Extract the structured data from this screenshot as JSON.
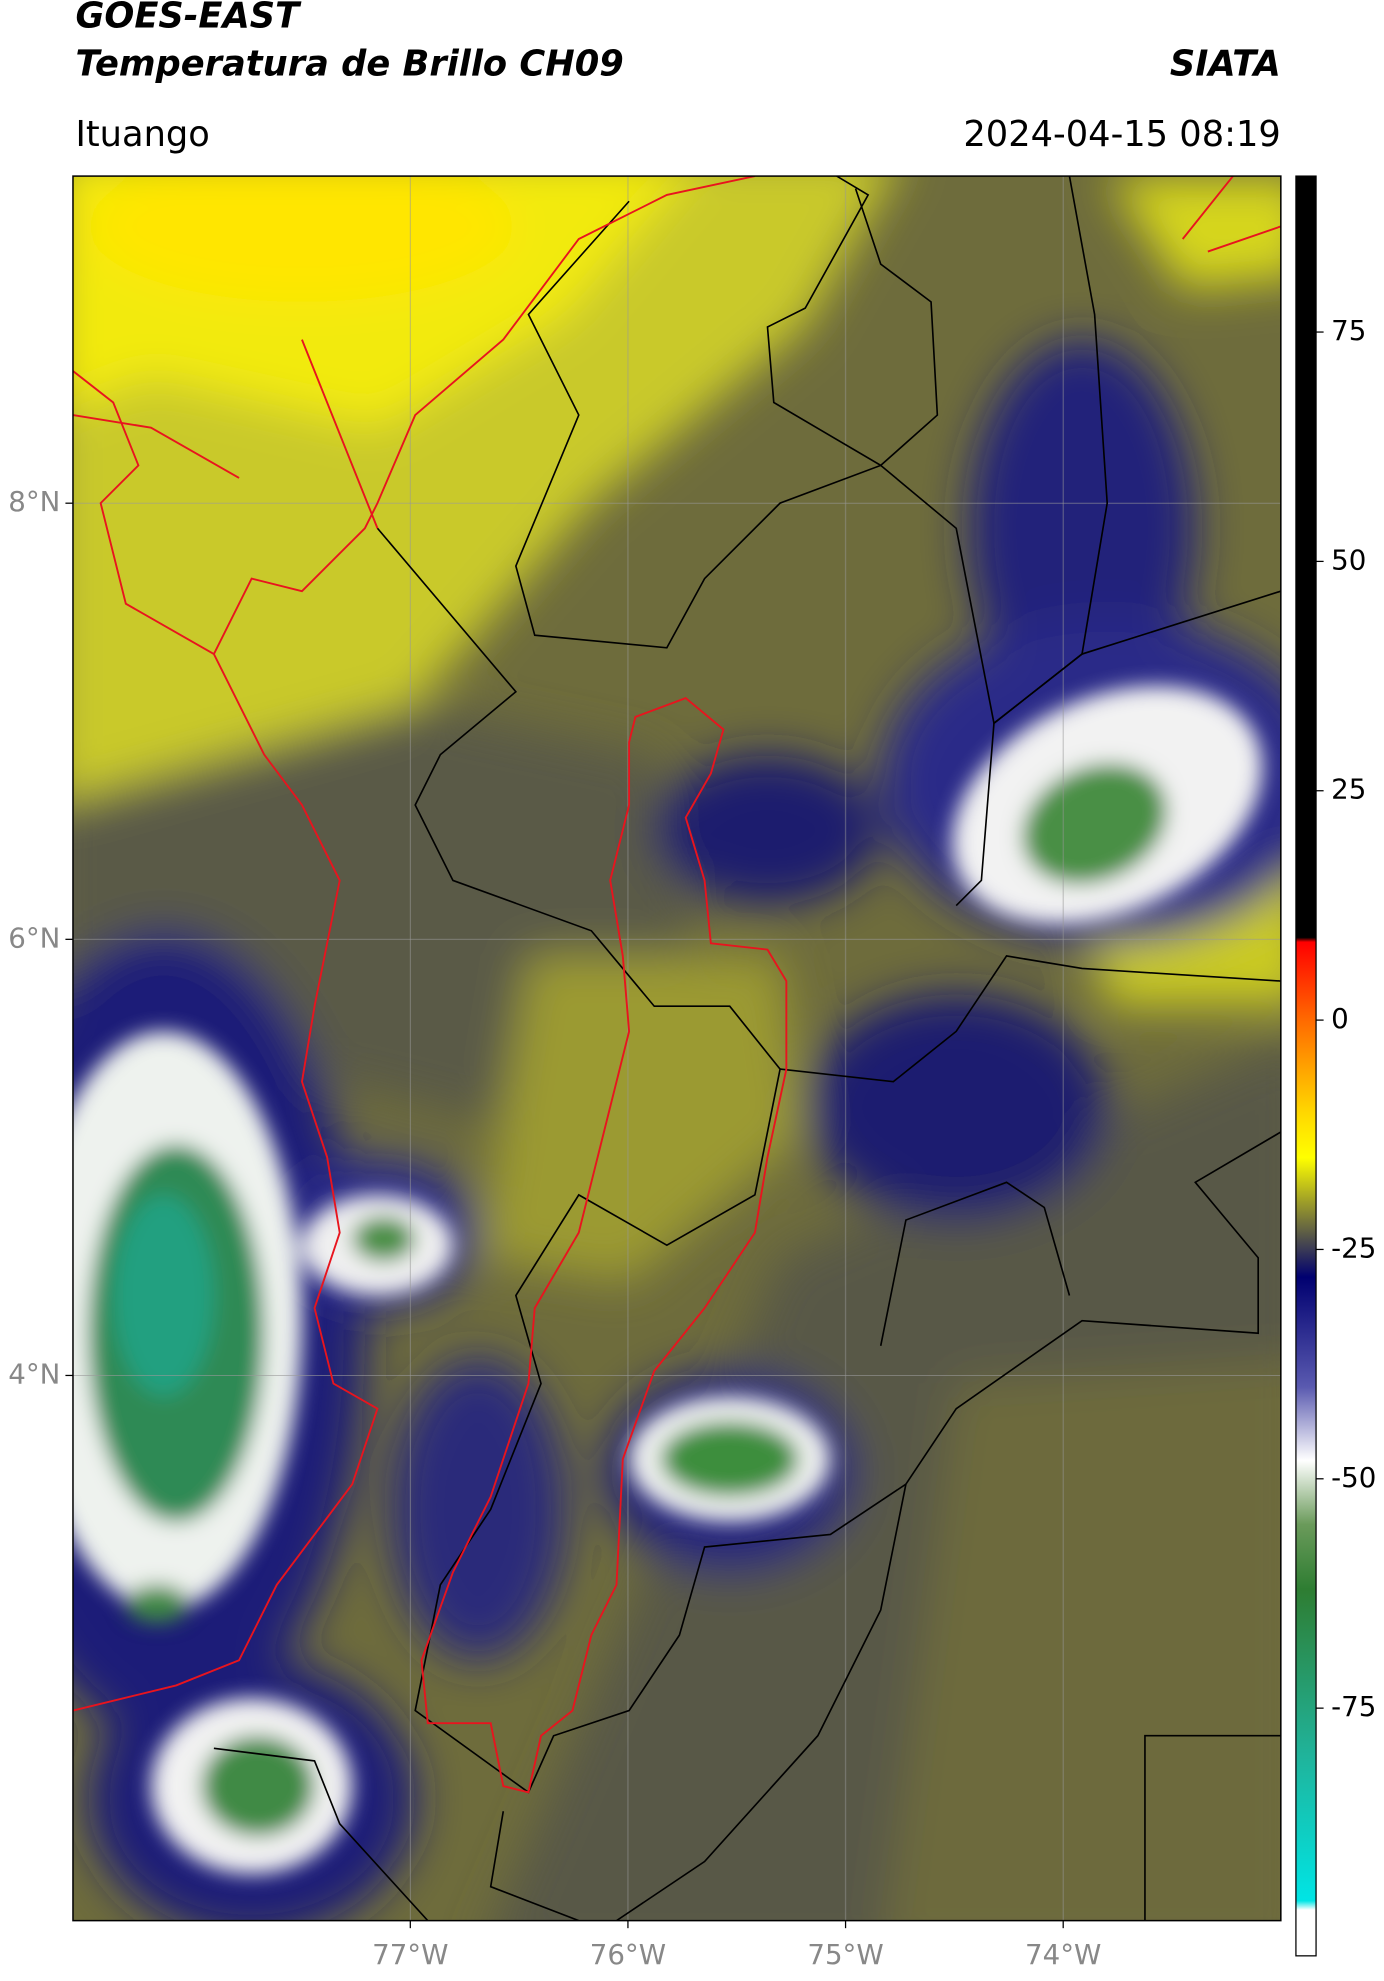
{
  "header": {
    "title": "GOES-EAST",
    "subtitle": "Temperatura de Brillo CH09",
    "source": "SIATA",
    "location": "Ituango",
    "datetime": "2024-04-15 08:19"
  },
  "map": {
    "lonlim": [
      -78.55,
      -73.0
    ],
    "latlim": [
      1.5,
      9.5
    ],
    "grid": true,
    "lonticks": [
      {
        "value": -77,
        "label": "77°W"
      },
      {
        "value": -76,
        "label": "76°W"
      },
      {
        "value": -75,
        "label": "75°W"
      },
      {
        "value": -74,
        "label": "74°W"
      }
    ],
    "latticks": [
      {
        "value": 8,
        "label": "8°N"
      },
      {
        "value": 6,
        "label": "6°N"
      },
      {
        "value": 4,
        "label": "4°N"
      }
    ]
  },
  "colorbar": {
    "lim": [
      -102,
      92
    ],
    "ticks": [
      75,
      50,
      25,
      0,
      -25,
      -50,
      -75
    ],
    "colormap": [
      {
        "value": 92,
        "color": "#000000"
      },
      {
        "value": 9,
        "color": "#000000"
      },
      {
        "value": 8.5,
        "color": "#ff0000"
      },
      {
        "value": 0,
        "color": "#ff6a00"
      },
      {
        "value": -10,
        "color": "#ffd700"
      },
      {
        "value": -15,
        "color": "#ffff00"
      },
      {
        "value": -20,
        "color": "#9a9a2a"
      },
      {
        "value": -24,
        "color": "#4d4d4d"
      },
      {
        "value": -28,
        "color": "#000070"
      },
      {
        "value": -40,
        "color": "#5a5ab0"
      },
      {
        "value": -48,
        "color": "#ffffff"
      },
      {
        "value": -55,
        "color": "#6a9a5a"
      },
      {
        "value": -62,
        "color": "#2e7d32"
      },
      {
        "value": -80,
        "color": "#20b39a"
      },
      {
        "value": -96,
        "color": "#00e5e5"
      },
      {
        "value": -97,
        "color": "#ffffff"
      },
      {
        "value": -102,
        "color": "#ffffff"
      }
    ]
  }
}
